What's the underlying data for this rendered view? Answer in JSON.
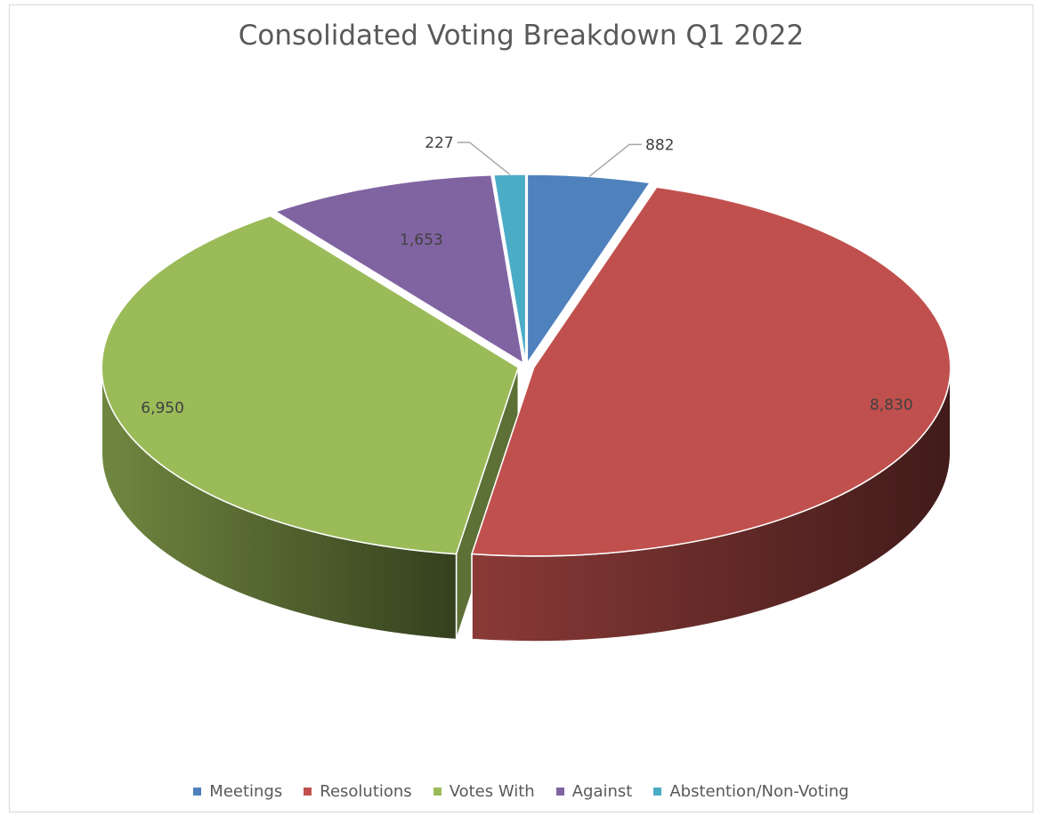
{
  "chart_data": {
    "type": "pie",
    "title": "Consolidated Voting Breakdown Q1 2022",
    "categories": [
      "Meetings",
      "Resolutions",
      "Votes With",
      "Against",
      "Abstention/Non-Voting"
    ],
    "values": [
      882,
      8830,
      6950,
      1653,
      227
    ],
    "value_labels": [
      "882",
      "8,830",
      "6,950",
      "1,653",
      "227"
    ],
    "colors": [
      "#4f81bd",
      "#c0504d",
      "#9bbb59",
      "#8064a2",
      "#4bacc6"
    ],
    "legend_position": "bottom",
    "three_d": true
  }
}
